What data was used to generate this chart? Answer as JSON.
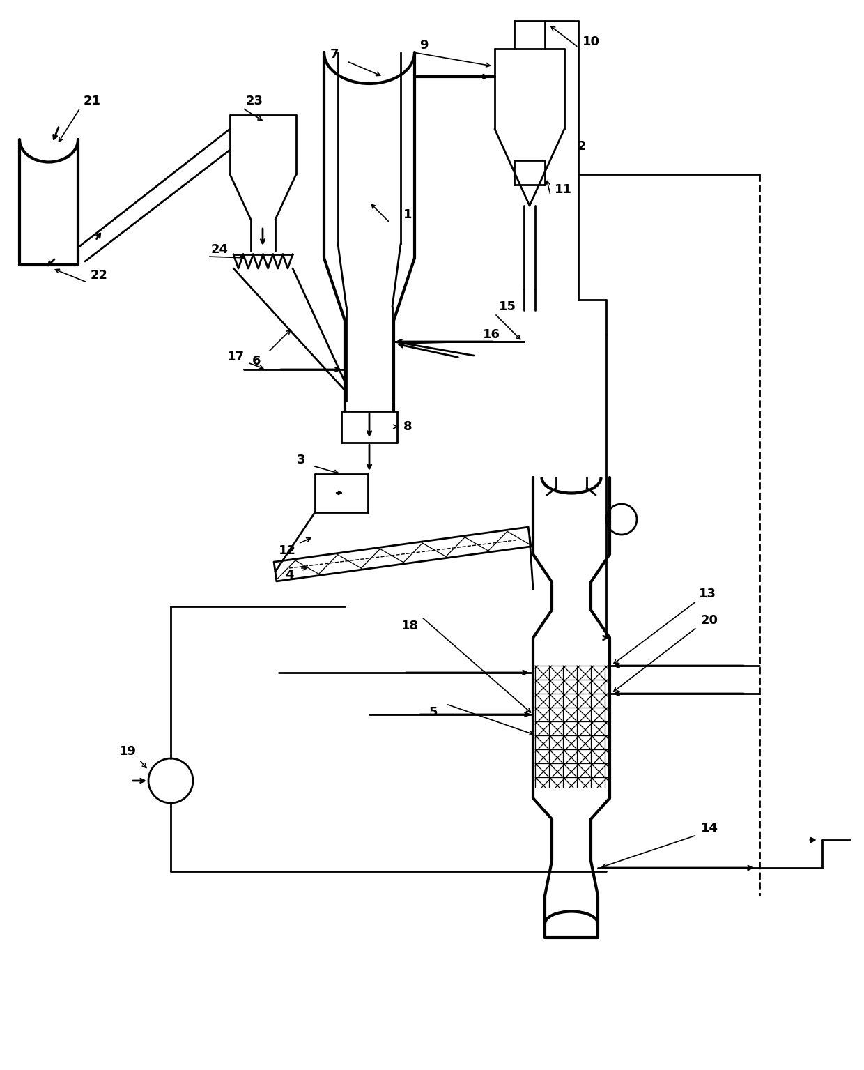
{
  "bg": "#ffffff",
  "lc": "#000000",
  "lw": 2.0
}
